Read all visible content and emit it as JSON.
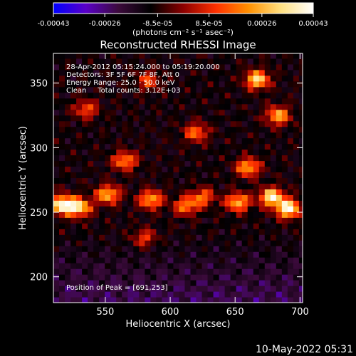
{
  "colorbar": {
    "tick_labels": [
      "-0.00043",
      "-0.00026",
      "-8.5e-05",
      "8.5e-05",
      "0.00026",
      "0.00043"
    ],
    "tick_values": [
      -0.00043,
      -0.00026,
      -8.5e-05,
      8.5e-05,
      0.00026,
      0.00043
    ],
    "range": [
      -0.00043,
      0.00043
    ],
    "unit_label": "(photons cm⁻² s⁻¹ asec⁻²)",
    "colors": [
      "#0000ff",
      "#5a00c8",
      "#3c0a3c",
      "#000000",
      "#8c0000",
      "#ff3000",
      "#ff9000",
      "#ffe080",
      "#ffffff"
    ]
  },
  "chart_data": {
    "type": "heatmap",
    "title": "Reconstructed RHESSI Image",
    "xlabel": "Heliocentric X (arcsec)",
    "ylabel": "Heliocentric Y (arcsec)",
    "xlim": [
      510,
      702
    ],
    "ylim": [
      180,
      373
    ],
    "x_ticks": [
      550,
      600,
      650,
      700
    ],
    "y_ticks": [
      200,
      250,
      300,
      350
    ],
    "annotations": [
      "28-Apr-2012 05:15:24.000 to 05:19:20.000",
      "Detectors: 3F 5F 6F 7F 8F, Att 0",
      "Energy Range: 25.0 - 50.0 keV",
      "Clean     Total counts: 3.12E+03"
    ],
    "peak_label": "Position of Peak = [691,253]",
    "peak": [
      691,
      253
    ],
    "bright_regions": [
      {
        "x": 517,
        "y": 256,
        "value": 0.00043
      },
      {
        "x": 530,
        "y": 254,
        "value": 0.00033
      },
      {
        "x": 552,
        "y": 264,
        "value": 0.00028
      },
      {
        "x": 585,
        "y": 260,
        "value": 0.00026
      },
      {
        "x": 565,
        "y": 290,
        "value": 0.00022
      },
      {
        "x": 620,
        "y": 312,
        "value": 0.00018
      },
      {
        "x": 612,
        "y": 255,
        "value": 0.0002
      },
      {
        "x": 625,
        "y": 262,
        "value": 0.00017
      },
      {
        "x": 667,
        "y": 353,
        "value": 0.00034
      },
      {
        "x": 683,
        "y": 325,
        "value": 0.00026
      },
      {
        "x": 660,
        "y": 285,
        "value": 0.00026
      },
      {
        "x": 678,
        "y": 262,
        "value": 0.00038
      },
      {
        "x": 691,
        "y": 253,
        "value": 0.00043
      },
      {
        "x": 652,
        "y": 258,
        "value": 0.00028
      },
      {
        "x": 535,
        "y": 330,
        "value": 0.00014
      },
      {
        "x": 583,
        "y": 352,
        "value": 0.00012
      },
      {
        "x": 580,
        "y": 230,
        "value": 0.00011
      }
    ]
  },
  "timestamp": "10-May-2022 05:31"
}
